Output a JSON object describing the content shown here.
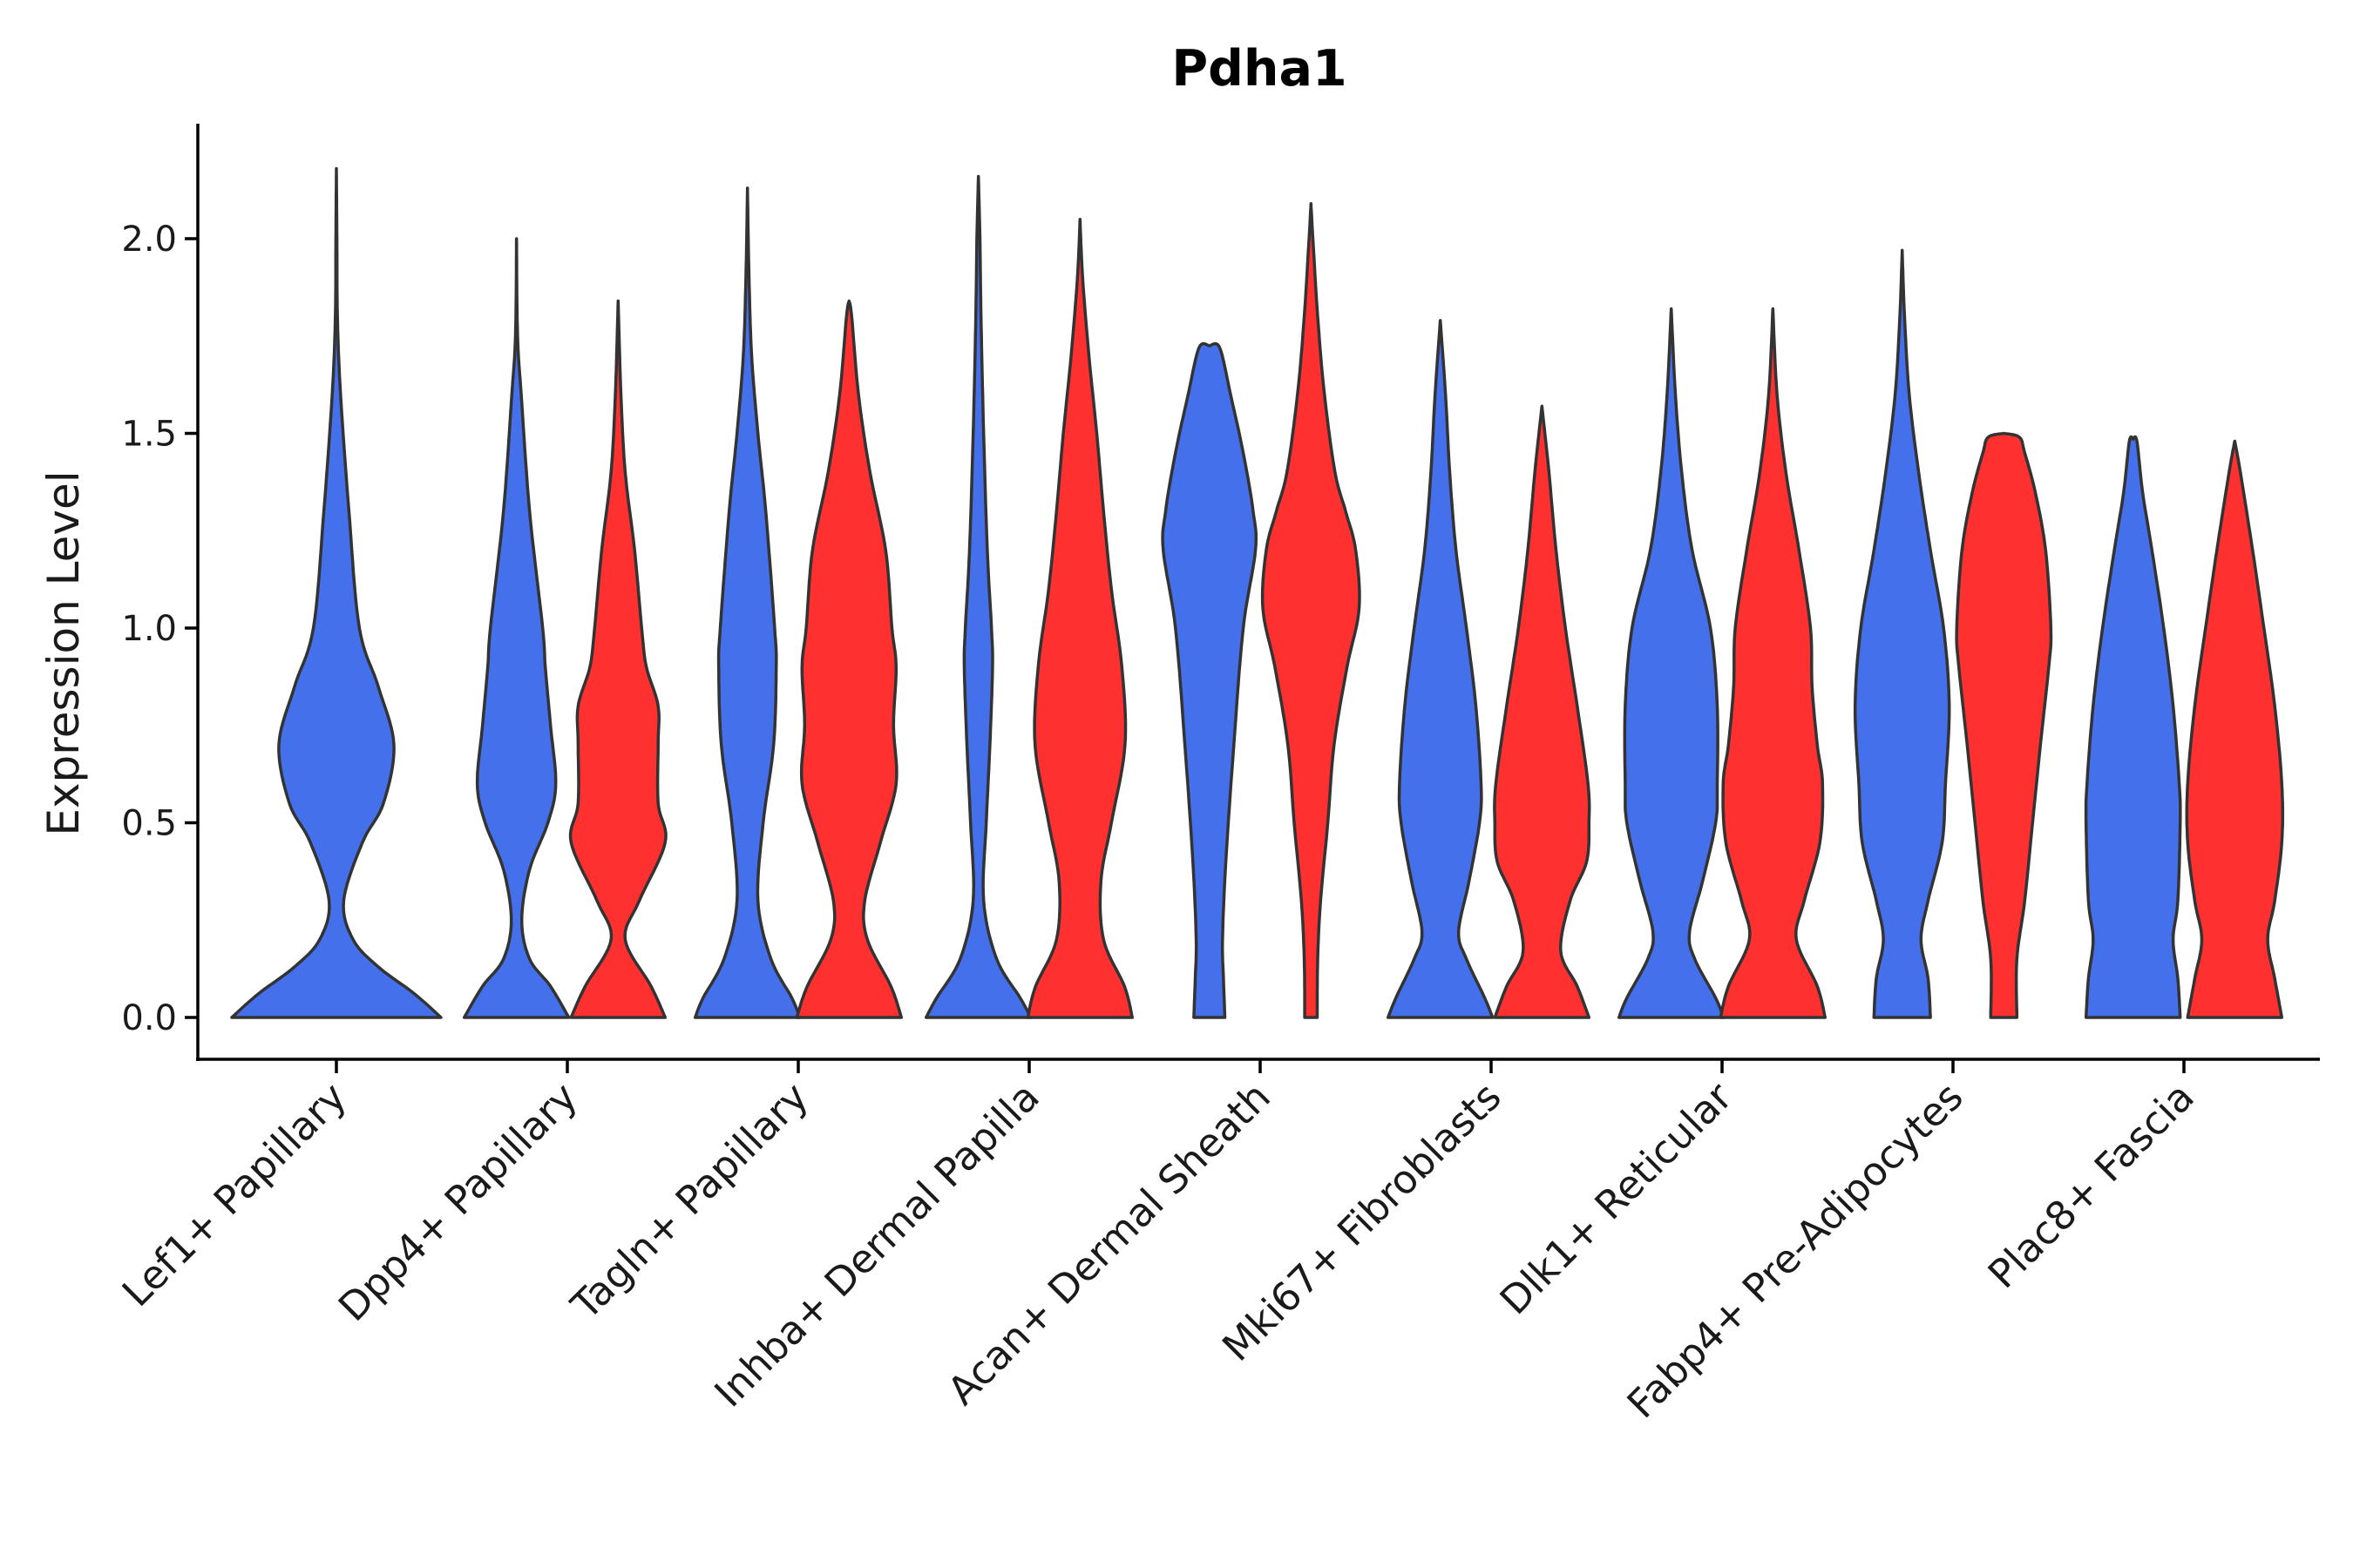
{
  "chart_data": {
    "type": "violin",
    "title": "Pdha1",
    "xlabel": "",
    "ylabel": "Expression Level",
    "ylim": [
      -0.11,
      2.3
    ],
    "yticks": [
      0.0,
      0.5,
      1.0,
      1.5,
      2.0
    ],
    "ytick_labels": [
      "0.0",
      "0.5",
      "1.0",
      "1.5",
      "2.0"
    ],
    "colors": {
      "group1": "#4570EC",
      "group2": "#FF3030",
      "outline": "#333333"
    },
    "categories": [
      "Lef1+ Papillary",
      "Dpp4+ Papillary",
      "Tagln+ Papillary",
      "Inhba+ Dermal Papilla",
      "Acan+ Dermal Sheath",
      "Mki67+ Fibroblasts",
      "Dlk1+ Reticular",
      "Fabp4+ Pre-Adipocytes",
      "Plac8+ Fascia"
    ],
    "violins": [
      {
        "category": "Lef1+ Papillary",
        "group": "blue",
        "offset": 0,
        "width": 1.0,
        "profile": [
          [
            0,
            1.0
          ],
          [
            0.06,
            0.75
          ],
          [
            0.13,
            0.4
          ],
          [
            0.2,
            0.16
          ],
          [
            0.3,
            0.07
          ],
          [
            0.45,
            0.25
          ],
          [
            0.55,
            0.45
          ],
          [
            0.7,
            0.55
          ],
          [
            0.85,
            0.4
          ],
          [
            1.0,
            0.22
          ],
          [
            1.3,
            0.12
          ],
          [
            1.6,
            0.04
          ],
          [
            1.8,
            0.01
          ],
          [
            2.0,
            0.005
          ],
          [
            2.18,
            0.0
          ]
        ]
      },
      {
        "category": "Dpp4+ Papillary",
        "group": "blue",
        "offset": -0.22,
        "width": 0.5,
        "profile": [
          [
            0,
            1.0
          ],
          [
            0.08,
            0.65
          ],
          [
            0.15,
            0.25
          ],
          [
            0.25,
            0.1
          ],
          [
            0.38,
            0.25
          ],
          [
            0.5,
            0.6
          ],
          [
            0.6,
            0.75
          ],
          [
            0.75,
            0.65
          ],
          [
            0.9,
            0.55
          ],
          [
            1.0,
            0.5
          ],
          [
            1.3,
            0.25
          ],
          [
            1.6,
            0.09
          ],
          [
            1.75,
            0.02
          ],
          [
            2.0,
            0.0
          ]
        ]
      },
      {
        "category": "Dpp4+ Papillary",
        "group": "red",
        "offset": 0.22,
        "width": 0.45,
        "profile": [
          [
            0,
            1.0
          ],
          [
            0.08,
            0.7
          ],
          [
            0.2,
            0.15
          ],
          [
            0.3,
            0.45
          ],
          [
            0.45,
            1.0
          ],
          [
            0.55,
            0.85
          ],
          [
            0.7,
            0.85
          ],
          [
            0.8,
            0.85
          ],
          [
            0.9,
            0.6
          ],
          [
            1.0,
            0.5
          ],
          [
            1.2,
            0.35
          ],
          [
            1.4,
            0.15
          ],
          [
            1.6,
            0.06
          ],
          [
            1.84,
            0.0
          ]
        ]
      },
      {
        "category": "Tagln+ Papillary",
        "group": "blue",
        "offset": -0.22,
        "width": 0.5,
        "profile": [
          [
            0,
            1.0
          ],
          [
            0.05,
            0.85
          ],
          [
            0.15,
            0.45
          ],
          [
            0.3,
            0.2
          ],
          [
            0.5,
            0.3
          ],
          [
            0.7,
            0.5
          ],
          [
            0.9,
            0.55
          ],
          [
            1.0,
            0.52
          ],
          [
            1.3,
            0.35
          ],
          [
            1.5,
            0.2
          ],
          [
            1.7,
            0.08
          ],
          [
            1.9,
            0.03
          ],
          [
            2.13,
            0.0
          ]
        ]
      },
      {
        "category": "Tagln+ Papillary",
        "group": "red",
        "offset": 0.22,
        "width": 0.5,
        "profile": [
          [
            0,
            1.0
          ],
          [
            0.08,
            0.8
          ],
          [
            0.2,
            0.35
          ],
          [
            0.3,
            0.3
          ],
          [
            0.45,
            0.6
          ],
          [
            0.6,
            0.9
          ],
          [
            0.75,
            0.85
          ],
          [
            0.9,
            0.9
          ],
          [
            1.0,
            0.82
          ],
          [
            1.2,
            0.7
          ],
          [
            1.4,
            0.4
          ],
          [
            1.6,
            0.18
          ],
          [
            1.8,
            0.05
          ],
          [
            1.84,
            0.0
          ]
        ]
      },
      {
        "category": "Inhba+ Dermal Papilla",
        "group": "blue",
        "offset": -0.22,
        "width": 0.5,
        "profile": [
          [
            0,
            1.0
          ],
          [
            0.05,
            0.8
          ],
          [
            0.15,
            0.35
          ],
          [
            0.3,
            0.1
          ],
          [
            0.5,
            0.15
          ],
          [
            0.7,
            0.22
          ],
          [
            0.9,
            0.27
          ],
          [
            1.0,
            0.25
          ],
          [
            1.2,
            0.17
          ],
          [
            1.5,
            0.1
          ],
          [
            1.8,
            0.05
          ],
          [
            2.0,
            0.03
          ],
          [
            2.16,
            0.0
          ]
        ]
      },
      {
        "category": "Inhba+ Dermal Papilla",
        "group": "red",
        "offset": 0.22,
        "width": 0.5,
        "profile": [
          [
            0,
            1.0
          ],
          [
            0.08,
            0.85
          ],
          [
            0.2,
            0.45
          ],
          [
            0.35,
            0.4
          ],
          [
            0.5,
            0.6
          ],
          [
            0.7,
            0.86
          ],
          [
            0.9,
            0.8
          ],
          [
            1.1,
            0.6
          ],
          [
            1.3,
            0.45
          ],
          [
            1.5,
            0.32
          ],
          [
            1.7,
            0.17
          ],
          [
            1.9,
            0.05
          ],
          [
            2.05,
            0.0
          ]
        ]
      },
      {
        "category": "Acan+ Dermal Sheath",
        "group": "blue",
        "offset": -0.22,
        "width": 0.45,
        "profile": [
          [
            0,
            0.33
          ],
          [
            0.1,
            0.3
          ],
          [
            0.2,
            0.28
          ],
          [
            0.4,
            0.35
          ],
          [
            0.7,
            0.52
          ],
          [
            1.0,
            0.72
          ],
          [
            1.2,
            0.98
          ],
          [
            1.3,
            0.93
          ],
          [
            1.45,
            0.72
          ],
          [
            1.6,
            0.45
          ],
          [
            1.72,
            0.22
          ],
          [
            1.725,
            0.0
          ]
        ]
      },
      {
        "category": "Acan+ Dermal Sheath",
        "group": "red",
        "offset": 0.22,
        "width": 0.46,
        "profile": [
          [
            0,
            0.13
          ],
          [
            0.15,
            0.14
          ],
          [
            0.3,
            0.2
          ],
          [
            0.5,
            0.35
          ],
          [
            0.7,
            0.48
          ],
          [
            0.9,
            0.75
          ],
          [
            1.05,
            1.0
          ],
          [
            1.2,
            0.93
          ],
          [
            1.3,
            0.72
          ],
          [
            1.4,
            0.5
          ],
          [
            1.6,
            0.28
          ],
          [
            1.8,
            0.14
          ],
          [
            2.0,
            0.04
          ],
          [
            2.09,
            0.0
          ]
        ]
      },
      {
        "category": "Mki67+ Fibroblasts",
        "group": "blue",
        "offset": -0.22,
        "width": 0.5,
        "profile": [
          [
            0,
            1.0
          ],
          [
            0.05,
            0.85
          ],
          [
            0.15,
            0.5
          ],
          [
            0.22,
            0.35
          ],
          [
            0.35,
            0.55
          ],
          [
            0.5,
            0.75
          ],
          [
            0.6,
            0.78
          ],
          [
            0.8,
            0.68
          ],
          [
            1.0,
            0.5
          ],
          [
            1.2,
            0.3
          ],
          [
            1.4,
            0.18
          ],
          [
            1.6,
            0.1
          ],
          [
            1.79,
            0.0
          ]
        ]
      },
      {
        "category": "Mki67+ Fibroblasts",
        "group": "red",
        "offset": 0.22,
        "width": 0.45,
        "profile": [
          [
            0,
            1.0
          ],
          [
            0.08,
            0.75
          ],
          [
            0.17,
            0.4
          ],
          [
            0.3,
            0.6
          ],
          [
            0.4,
            0.95
          ],
          [
            0.5,
            1.0
          ],
          [
            0.6,
            0.98
          ],
          [
            0.8,
            0.75
          ],
          [
            1.0,
            0.5
          ],
          [
            1.2,
            0.3
          ],
          [
            1.4,
            0.15
          ],
          [
            1.57,
            0.0
          ]
        ]
      },
      {
        "category": "Dlk1+ Reticular",
        "group": "blue",
        "offset": -0.22,
        "width": 0.5,
        "profile": [
          [
            0,
            1.0
          ],
          [
            0.05,
            0.85
          ],
          [
            0.15,
            0.45
          ],
          [
            0.22,
            0.35
          ],
          [
            0.35,
            0.6
          ],
          [
            0.5,
            0.85
          ],
          [
            0.6,
            0.88
          ],
          [
            0.8,
            0.88
          ],
          [
            1.0,
            0.75
          ],
          [
            1.2,
            0.4
          ],
          [
            1.4,
            0.2
          ],
          [
            1.6,
            0.08
          ],
          [
            1.82,
            0.0
          ]
        ]
      },
      {
        "category": "Dlk1+ Reticular",
        "group": "red",
        "offset": 0.22,
        "width": 0.5,
        "profile": [
          [
            0,
            1.0
          ],
          [
            0.08,
            0.85
          ],
          [
            0.2,
            0.45
          ],
          [
            0.3,
            0.6
          ],
          [
            0.45,
            0.9
          ],
          [
            0.6,
            0.95
          ],
          [
            0.7,
            0.85
          ],
          [
            0.85,
            0.75
          ],
          [
            1.0,
            0.72
          ],
          [
            1.2,
            0.5
          ],
          [
            1.4,
            0.25
          ],
          [
            1.6,
            0.08
          ],
          [
            1.82,
            0.0
          ]
        ]
      },
      {
        "category": "Fabp4+ Pre-Adipocytes",
        "group": "blue",
        "offset": -0.22,
        "width": 0.45,
        "profile": [
          [
            0,
            0.6
          ],
          [
            0.1,
            0.55
          ],
          [
            0.2,
            0.4
          ],
          [
            0.3,
            0.55
          ],
          [
            0.45,
            0.85
          ],
          [
            0.6,
            0.92
          ],
          [
            0.8,
            1.0
          ],
          [
            1.0,
            0.88
          ],
          [
            1.2,
            0.6
          ],
          [
            1.4,
            0.35
          ],
          [
            1.6,
            0.15
          ],
          [
            1.8,
            0.05
          ],
          [
            1.97,
            0.0
          ]
        ]
      },
      {
        "category": "Fabp4+ Pre-Adipocytes",
        "group": "red",
        "offset": 0.22,
        "width": 0.5,
        "profile": [
          [
            0,
            0.25
          ],
          [
            0.15,
            0.25
          ],
          [
            0.3,
            0.4
          ],
          [
            0.5,
            0.55
          ],
          [
            0.7,
            0.7
          ],
          [
            0.9,
            0.86
          ],
          [
            1.0,
            0.9
          ],
          [
            1.2,
            0.8
          ],
          [
            1.35,
            0.6
          ],
          [
            1.45,
            0.4
          ],
          [
            1.49,
            0.3
          ],
          [
            1.5,
            0.0
          ]
        ]
      },
      {
        "category": "Plac8+ Fascia",
        "group": "blue",
        "offset": -0.22,
        "width": 0.45,
        "profile": [
          [
            0,
            1.0
          ],
          [
            0.1,
            0.95
          ],
          [
            0.2,
            0.85
          ],
          [
            0.3,
            0.95
          ],
          [
            0.5,
            1.0
          ],
          [
            0.6,
            0.98
          ],
          [
            0.8,
            0.85
          ],
          [
            1.0,
            0.65
          ],
          [
            1.2,
            0.4
          ],
          [
            1.35,
            0.2
          ],
          [
            1.48,
            0.08
          ],
          [
            1.485,
            0.0
          ]
        ]
      },
      {
        "category": "Plac8+ Fascia",
        "group": "red",
        "offset": 0.22,
        "width": 0.45,
        "profile": [
          [
            0,
            1.0
          ],
          [
            0.1,
            0.85
          ],
          [
            0.2,
            0.7
          ],
          [
            0.3,
            0.85
          ],
          [
            0.45,
            1.0
          ],
          [
            0.6,
            1.0
          ],
          [
            0.8,
            0.85
          ],
          [
            1.0,
            0.62
          ],
          [
            1.2,
            0.38
          ],
          [
            1.4,
            0.12
          ],
          [
            1.48,
            0.0
          ]
        ]
      }
    ]
  }
}
